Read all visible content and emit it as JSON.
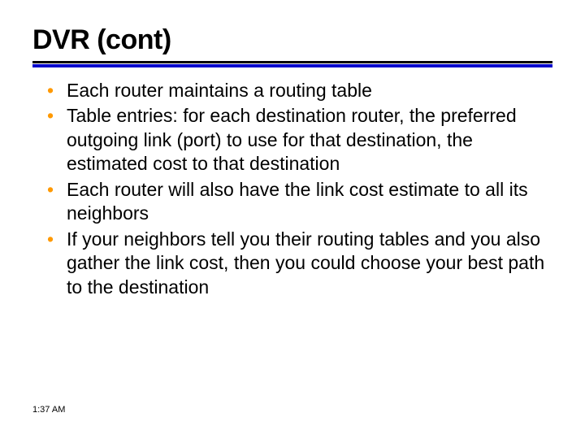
{
  "slide": {
    "title": "DVR (cont)",
    "title_fontsize": 34,
    "title_fontweight": 900,
    "title_fontfamily": "Arial",
    "rule_dark_color": "#000000",
    "rule_blue_color": "#0000cc",
    "bullet_color": "#ff9900",
    "body_fontsize": 23,
    "body_fontfamily": "Verdana",
    "background_color": "#ffffff",
    "bullets": [
      "Each router maintains a routing table",
      "Table entries: for each destination router, the preferred outgoing link (port) to use for that destination, the estimated cost to that destination",
      "Each router will also have the link cost estimate to all its neighbors",
      " If your neighbors tell you their routing tables and you also gather the link cost, then you could choose your best path to the destination"
    ],
    "footer_time": "1:37 AM"
  }
}
